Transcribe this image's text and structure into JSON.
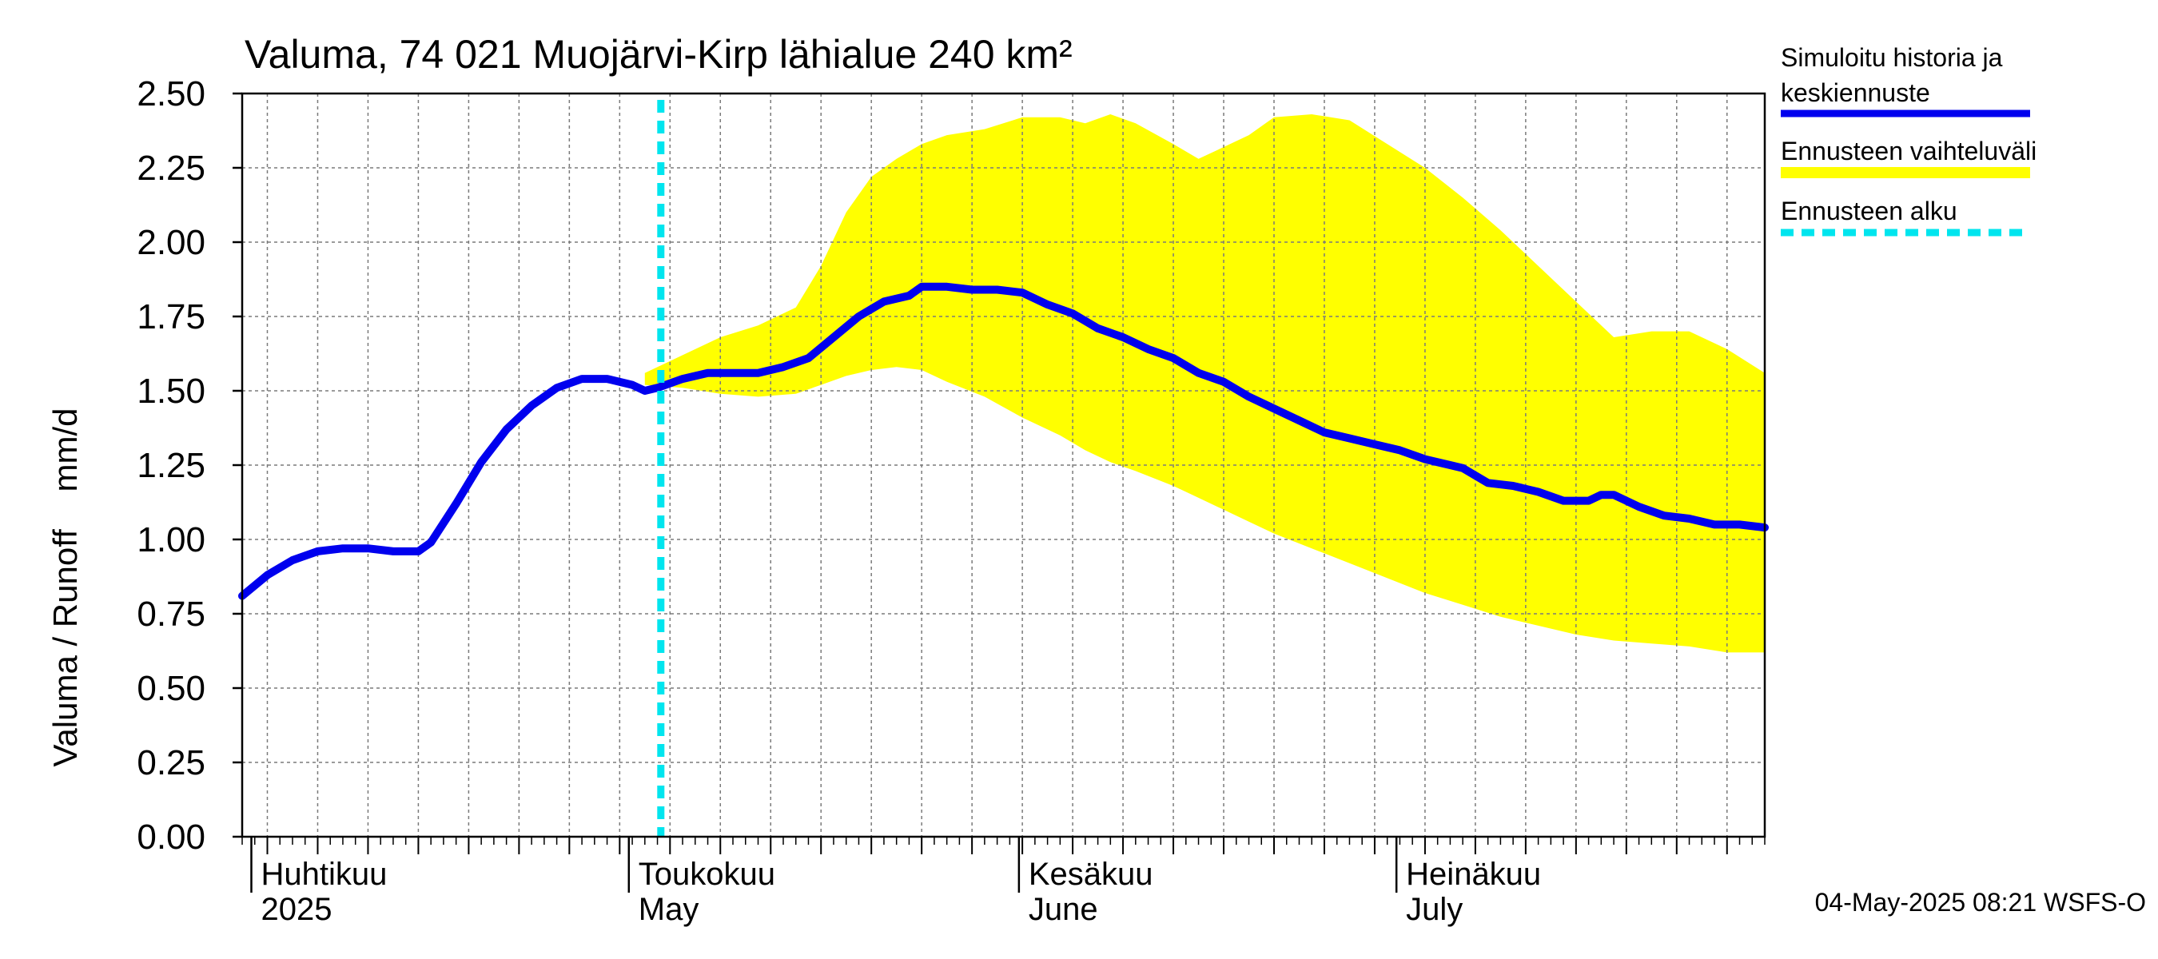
{
  "chart_data": {
    "type": "area",
    "title": "Valuma, 74 021 Muojärvi-Kirp lähialue 240 km²",
    "ylabel": "Valuma / Runoff    mm/d",
    "ylim": [
      0,
      2.5
    ],
    "y_ticks": [
      "0.00",
      "0.25",
      "0.50",
      "0.75",
      "1.00",
      "1.25",
      "1.50",
      "1.75",
      "2.00",
      "2.25",
      "2.50"
    ],
    "x_range": [
      "2025-03-30",
      "2025-07-29"
    ],
    "month_labels": [
      {
        "date": "2025-04-01",
        "fi": "Huhtikuu",
        "en": "2025"
      },
      {
        "date": "2025-05-01",
        "fi": "Toukokuu",
        "en": "May"
      },
      {
        "date": "2025-06-01",
        "fi": "Kesäkuu",
        "en": "June"
      },
      {
        "date": "2025-07-01",
        "fi": "Heinäkuu",
        "en": "July"
      }
    ],
    "forecast_start": "2025-05-01",
    "timestamp": "04-May-2025 08:21 WSFS-O",
    "legend": {
      "placement": "right",
      "items": [
        {
          "label1": "Simuloitu historia ja",
          "label2": "keskiennuste",
          "color": "#0000ee",
          "style": "line"
        },
        {
          "label1": "Ennusteen vaihteluväli",
          "label2": "",
          "color": "#ffff00",
          "style": "band"
        },
        {
          "label1": "Ennusteen alku",
          "label2": "",
          "color": "#00e5ee",
          "style": "dashed"
        }
      ]
    },
    "series": [
      {
        "name": "Simuloitu historia ja keskiennuste",
        "color": "#0000ee",
        "points": [
          [
            "2025-03-30",
            0.81
          ],
          [
            "2025-04-01",
            0.88
          ],
          [
            "2025-04-03",
            0.93
          ],
          [
            "2025-04-05",
            0.96
          ],
          [
            "2025-04-07",
            0.97
          ],
          [
            "2025-04-09",
            0.97
          ],
          [
            "2025-04-11",
            0.96
          ],
          [
            "2025-04-13",
            0.96
          ],
          [
            "2025-04-14",
            0.99
          ],
          [
            "2025-04-16",
            1.12
          ],
          [
            "2025-04-18",
            1.26
          ],
          [
            "2025-04-20",
            1.37
          ],
          [
            "2025-04-22",
            1.45
          ],
          [
            "2025-04-24",
            1.51
          ],
          [
            "2025-04-26",
            1.54
          ],
          [
            "2025-04-28",
            1.54
          ],
          [
            "2025-04-30",
            1.52
          ],
          [
            "2025-05-01",
            1.5
          ],
          [
            "2025-05-02",
            1.51
          ],
          [
            "2025-05-04",
            1.54
          ],
          [
            "2025-05-06",
            1.56
          ],
          [
            "2025-05-08",
            1.56
          ],
          [
            "2025-05-10",
            1.56
          ],
          [
            "2025-05-12",
            1.58
          ],
          [
            "2025-05-14",
            1.61
          ],
          [
            "2025-05-16",
            1.68
          ],
          [
            "2025-05-18",
            1.75
          ],
          [
            "2025-05-20",
            1.8
          ],
          [
            "2025-05-22",
            1.82
          ],
          [
            "2025-05-23",
            1.85
          ],
          [
            "2025-05-25",
            1.85
          ],
          [
            "2025-05-27",
            1.84
          ],
          [
            "2025-05-29",
            1.84
          ],
          [
            "2025-05-31",
            1.83
          ],
          [
            "2025-06-02",
            1.79
          ],
          [
            "2025-06-04",
            1.76
          ],
          [
            "2025-06-06",
            1.71
          ],
          [
            "2025-06-08",
            1.68
          ],
          [
            "2025-06-10",
            1.64
          ],
          [
            "2025-06-12",
            1.61
          ],
          [
            "2025-06-14",
            1.56
          ],
          [
            "2025-06-16",
            1.53
          ],
          [
            "2025-06-18",
            1.48
          ],
          [
            "2025-06-20",
            1.44
          ],
          [
            "2025-06-22",
            1.4
          ],
          [
            "2025-06-24",
            1.36
          ],
          [
            "2025-06-26",
            1.34
          ],
          [
            "2025-06-28",
            1.32
          ],
          [
            "2025-06-30",
            1.3
          ],
          [
            "2025-07-02",
            1.27
          ],
          [
            "2025-07-04",
            1.25
          ],
          [
            "2025-07-05",
            1.24
          ],
          [
            "2025-07-07",
            1.19
          ],
          [
            "2025-07-09",
            1.18
          ],
          [
            "2025-07-11",
            1.16
          ],
          [
            "2025-07-13",
            1.13
          ],
          [
            "2025-07-15",
            1.13
          ],
          [
            "2025-07-16",
            1.15
          ],
          [
            "2025-07-17",
            1.15
          ],
          [
            "2025-07-19",
            1.11
          ],
          [
            "2025-07-21",
            1.08
          ],
          [
            "2025-07-23",
            1.07
          ],
          [
            "2025-07-25",
            1.05
          ],
          [
            "2025-07-27",
            1.05
          ],
          [
            "2025-07-29",
            1.04
          ]
        ]
      }
    ],
    "band": {
      "name": "Ennusteen vaihteluväli",
      "color": "#ffff00",
      "points": [
        [
          "2025-05-01",
          1.56,
          1.52
        ],
        [
          "2025-05-04",
          1.62,
          1.51
        ],
        [
          "2025-05-07",
          1.68,
          1.49
        ],
        [
          "2025-05-10",
          1.72,
          1.48
        ],
        [
          "2025-05-13",
          1.78,
          1.49
        ],
        [
          "2025-05-15",
          1.92,
          1.52
        ],
        [
          "2025-05-17",
          2.1,
          1.55
        ],
        [
          "2025-05-19",
          2.22,
          1.57
        ],
        [
          "2025-05-21",
          2.28,
          1.58
        ],
        [
          "2025-05-23",
          2.33,
          1.57
        ],
        [
          "2025-05-25",
          2.36,
          1.53
        ],
        [
          "2025-05-28",
          2.38,
          1.48
        ],
        [
          "2025-05-31",
          2.42,
          1.41
        ],
        [
          "2025-06-03",
          2.42,
          1.35
        ],
        [
          "2025-06-05",
          2.4,
          1.3
        ],
        [
          "2025-06-07",
          2.43,
          1.26
        ],
        [
          "2025-06-09",
          2.4,
          1.23
        ],
        [
          "2025-06-12",
          2.33,
          1.18
        ],
        [
          "2025-06-14",
          2.28,
          1.14
        ],
        [
          "2025-06-16",
          2.32,
          1.1
        ],
        [
          "2025-06-18",
          2.36,
          1.06
        ],
        [
          "2025-06-20",
          2.42,
          1.02
        ],
        [
          "2025-06-23",
          2.43,
          0.97
        ],
        [
          "2025-06-26",
          2.41,
          0.92
        ],
        [
          "2025-06-29",
          2.33,
          0.87
        ],
        [
          "2025-07-02",
          2.25,
          0.82
        ],
        [
          "2025-07-05",
          2.15,
          0.78
        ],
        [
          "2025-07-08",
          2.04,
          0.74
        ],
        [
          "2025-07-11",
          1.92,
          0.71
        ],
        [
          "2025-07-14",
          1.8,
          0.68
        ],
        [
          "2025-07-17",
          1.68,
          0.66
        ],
        [
          "2025-07-20",
          1.7,
          0.65
        ],
        [
          "2025-07-23",
          1.7,
          0.64
        ],
        [
          "2025-07-26",
          1.64,
          0.62
        ],
        [
          "2025-07-29",
          1.56,
          0.62
        ]
      ]
    }
  }
}
